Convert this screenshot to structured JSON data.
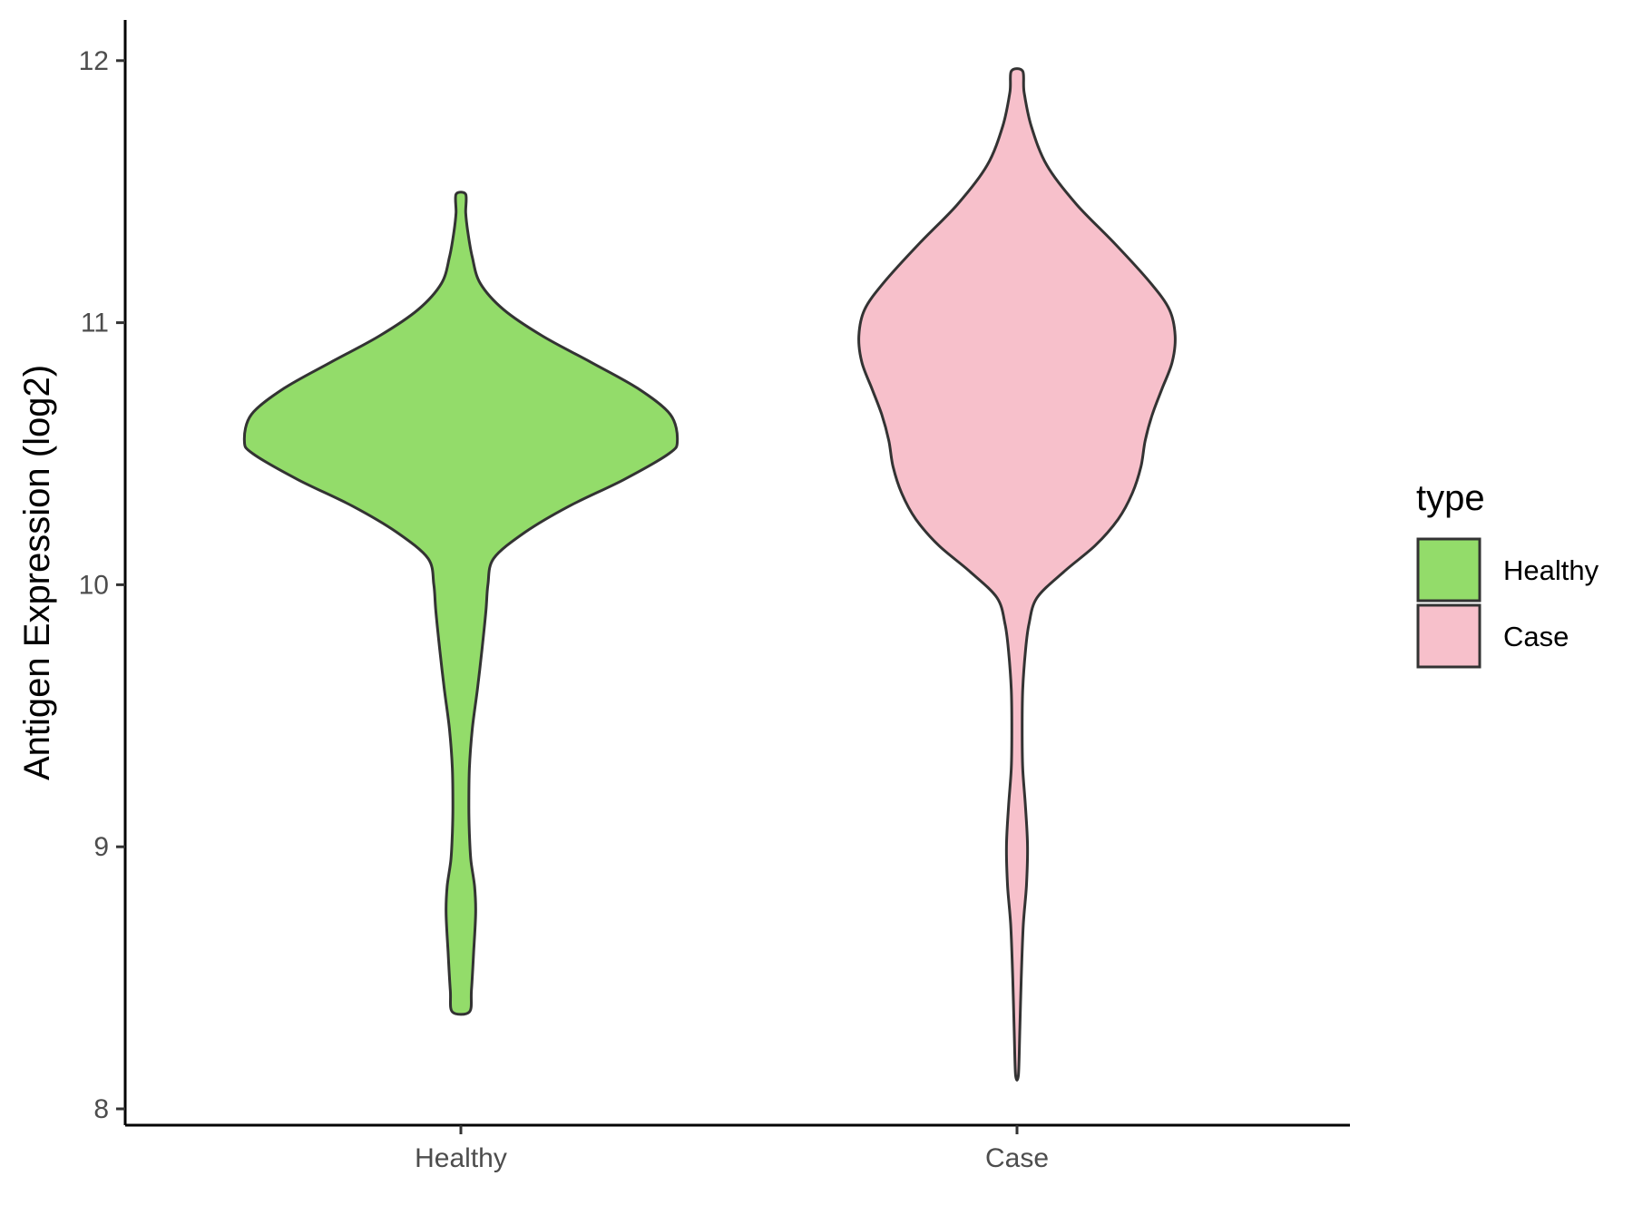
{
  "chart_data": {
    "type": "violin",
    "categories": [
      "Healthy",
      "Case"
    ],
    "ylabel": "Antigen Expression (log2)",
    "xlabel": "",
    "ylim": [
      7.95,
      12.15
    ],
    "yticks": [
      8,
      9,
      10,
      11,
      12
    ],
    "grid": false,
    "legend": {
      "title": "type",
      "position": "right",
      "entries": [
        {
          "label": "Healthy",
          "color": "#93dc6a"
        },
        {
          "label": "Case",
          "color": "#f7c0cb"
        }
      ]
    },
    "series": [
      {
        "name": "Healthy",
        "color": "#93dc6a",
        "min": 8.37,
        "max": 11.49,
        "density": [
          [
            8.37,
            0.03
          ],
          [
            8.45,
            0.037
          ],
          [
            8.6,
            0.045
          ],
          [
            8.75,
            0.052
          ],
          [
            8.85,
            0.048
          ],
          [
            8.95,
            0.035
          ],
          [
            9.05,
            0.03
          ],
          [
            9.15,
            0.028
          ],
          [
            9.3,
            0.03
          ],
          [
            9.45,
            0.04
          ],
          [
            9.6,
            0.058
          ],
          [
            9.75,
            0.074
          ],
          [
            9.9,
            0.088
          ],
          [
            10.0,
            0.095
          ],
          [
            10.1,
            0.115
          ],
          [
            10.2,
            0.225
          ],
          [
            10.3,
            0.38
          ],
          [
            10.4,
            0.57
          ],
          [
            10.5,
            0.73
          ],
          [
            10.55,
            0.76
          ],
          [
            10.65,
            0.735
          ],
          [
            10.75,
            0.62
          ],
          [
            10.85,
            0.455
          ],
          [
            10.95,
            0.285
          ],
          [
            11.05,
            0.15
          ],
          [
            11.15,
            0.068
          ],
          [
            11.25,
            0.04
          ],
          [
            11.35,
            0.024
          ],
          [
            11.42,
            0.017
          ],
          [
            11.49,
            0.017
          ]
        ]
      },
      {
        "name": "Case",
        "color": "#f7c0cb",
        "min": 8.13,
        "max": 11.96,
        "density": [
          [
            8.13,
            0.005
          ],
          [
            8.3,
            0.01
          ],
          [
            8.5,
            0.015
          ],
          [
            8.7,
            0.022
          ],
          [
            8.85,
            0.033
          ],
          [
            9.0,
            0.037
          ],
          [
            9.15,
            0.03
          ],
          [
            9.3,
            0.02
          ],
          [
            9.45,
            0.018
          ],
          [
            9.6,
            0.02
          ],
          [
            9.75,
            0.03
          ],
          [
            9.85,
            0.042
          ],
          [
            9.95,
            0.07
          ],
          [
            10.05,
            0.165
          ],
          [
            10.15,
            0.275
          ],
          [
            10.25,
            0.355
          ],
          [
            10.35,
            0.405
          ],
          [
            10.45,
            0.435
          ],
          [
            10.55,
            0.45
          ],
          [
            10.65,
            0.475
          ],
          [
            10.75,
            0.51
          ],
          [
            10.85,
            0.545
          ],
          [
            10.95,
            0.555
          ],
          [
            11.05,
            0.535
          ],
          [
            11.15,
            0.47
          ],
          [
            11.3,
            0.345
          ],
          [
            11.45,
            0.21
          ],
          [
            11.6,
            0.105
          ],
          [
            11.75,
            0.05
          ],
          [
            11.88,
            0.025
          ],
          [
            11.96,
            0.02
          ]
        ]
      }
    ]
  }
}
